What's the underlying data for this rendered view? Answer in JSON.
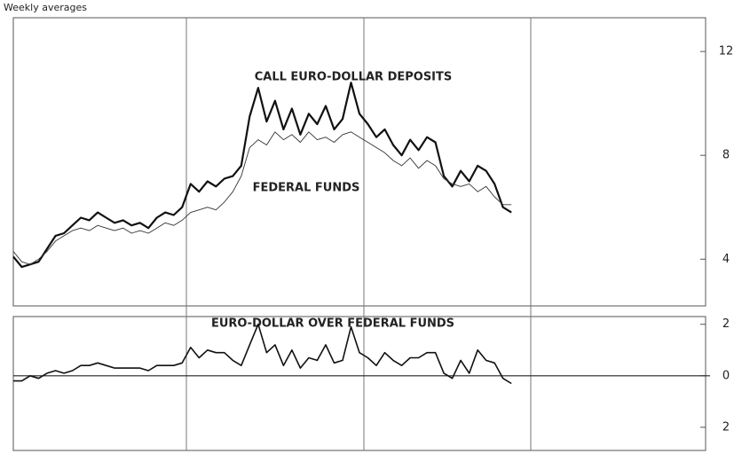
{
  "subtitle": "Weekly averages",
  "chart_data": [
    {
      "type": "line",
      "categories": [
        null,
        null,
        null,
        null,
        null,
        null,
        null,
        null,
        null,
        null,
        null,
        null,
        null,
        null,
        null,
        null,
        null,
        null,
        null,
        null,
        null,
        null,
        null,
        null,
        null,
        null,
        null,
        null,
        null,
        null,
        null,
        null,
        null,
        null,
        null,
        null,
        null,
        null,
        null,
        null,
        null,
        null,
        null,
        null,
        null,
        null,
        null,
        null,
        null,
        null,
        null,
        null,
        null,
        null,
        null,
        null,
        null,
        null,
        null,
        null,
        null,
        null,
        null,
        null,
        null,
        null,
        null,
        null,
        null,
        null,
        null,
        null,
        null,
        null,
        null,
        null,
        null,
        null,
        null,
        null,
        null,
        null,
        null
      ],
      "series": [
        {
          "name": "CALL EURO-DOLLAR DEPOSITS",
          "color": "#111111",
          "values": [
            4.1,
            3.7,
            3.8,
            3.9,
            4.4,
            4.9,
            5.0,
            5.3,
            5.6,
            5.5,
            5.8,
            5.6,
            5.4,
            5.5,
            5.3,
            5.4,
            5.2,
            5.6,
            5.8,
            5.7,
            6.0,
            6.9,
            6.6,
            7.0,
            6.8,
            7.1,
            7.2,
            7.6,
            9.5,
            10.6,
            9.3,
            10.1,
            9.0,
            9.8,
            8.8,
            9.6,
            9.2,
            9.9,
            9.0,
            9.4,
            10.8,
            9.6,
            9.2,
            8.7,
            9.0,
            8.4,
            8.0,
            8.6,
            8.2,
            8.7,
            8.5,
            7.2,
            6.8,
            7.4,
            7.0,
            7.6,
            7.4,
            6.9,
            6.0,
            5.8,
            null,
            null,
            null,
            null,
            null,
            null,
            null,
            null,
            null,
            null,
            null,
            null,
            null,
            null,
            null,
            null,
            null,
            null,
            null,
            null,
            null,
            null,
            null
          ]
        },
        {
          "name": "FEDERAL FUNDS",
          "color": "#333333",
          "values": [
            4.3,
            3.9,
            3.8,
            4.0,
            4.3,
            4.7,
            4.9,
            5.1,
            5.2,
            5.1,
            5.3,
            5.2,
            5.1,
            5.2,
            5.0,
            5.1,
            5.0,
            5.2,
            5.4,
            5.3,
            5.5,
            5.8,
            5.9,
            6.0,
            5.9,
            6.2,
            6.6,
            7.2,
            8.3,
            8.6,
            8.4,
            8.9,
            8.6,
            8.8,
            8.5,
            8.9,
            8.6,
            8.7,
            8.5,
            8.8,
            8.9,
            8.7,
            8.5,
            8.3,
            8.1,
            7.8,
            7.6,
            7.9,
            7.5,
            7.8,
            7.6,
            7.1,
            6.9,
            6.8,
            6.9,
            6.6,
            6.8,
            6.4,
            6.1,
            6.1,
            null,
            null,
            null,
            null,
            null,
            null,
            null,
            null,
            null,
            null,
            null,
            null,
            null,
            null,
            null,
            null,
            null,
            null,
            null,
            null,
            null,
            null,
            null
          ]
        }
      ],
      "ylim": [
        2.2,
        13.3
      ],
      "yticks": [
        4,
        8,
        12
      ]
    },
    {
      "type": "line",
      "title": "EURO-DOLLAR OVER FEDERAL FUNDS",
      "categories": [
        null,
        null,
        null,
        null,
        null,
        null,
        null,
        null,
        null,
        null,
        null,
        null,
        null,
        null,
        null,
        null,
        null,
        null,
        null,
        null,
        null,
        null,
        null,
        null,
        null,
        null,
        null,
        null,
        null,
        null,
        null,
        null,
        null,
        null,
        null,
        null,
        null,
        null,
        null,
        null,
        null,
        null,
        null,
        null,
        null,
        null,
        null,
        null,
        null,
        null,
        null,
        null,
        null,
        null,
        null,
        null,
        null,
        null,
        null,
        null,
        null,
        null,
        null,
        null,
        null,
        null,
        null,
        null,
        null,
        null,
        null,
        null,
        null,
        null,
        null,
        null,
        null,
        null,
        null,
        null,
        null,
        null,
        null
      ],
      "series": [
        {
          "color": "#111111",
          "values": [
            -0.2,
            -0.2,
            0,
            -0.1,
            0.1,
            0.2,
            0.1,
            0.2,
            0.4,
            0.4,
            0.5,
            0.4,
            0.3,
            0.3,
            0.3,
            0.3,
            0.2,
            0.4,
            0.4,
            0.4,
            0.5,
            1.1,
            0.7,
            1.0,
            0.9,
            0.9,
            0.6,
            0.4,
            1.2,
            2.0,
            0.9,
            1.2,
            0.4,
            1.0,
            0.3,
            0.7,
            0.6,
            1.2,
            0.5,
            0.6,
            1.9,
            0.9,
            0.7,
            0.4,
            0.9,
            0.6,
            0.4,
            0.7,
            0.7,
            0.9,
            0.9,
            0.1,
            -0.1,
            0.6,
            0.1,
            1.0,
            0.6,
            0.5,
            -0.1,
            -0.3,
            null,
            null,
            null,
            null,
            null,
            null,
            null,
            null,
            null,
            null,
            null,
            null,
            null,
            null,
            null,
            null,
            null,
            null,
            null,
            null,
            null,
            null,
            null
          ]
        }
      ],
      "ylim": [
        -2.9,
        2.3
      ],
      "yticks": [
        {
          "value": -2,
          "label": "2"
        },
        0,
        2
      ]
    }
  ]
}
